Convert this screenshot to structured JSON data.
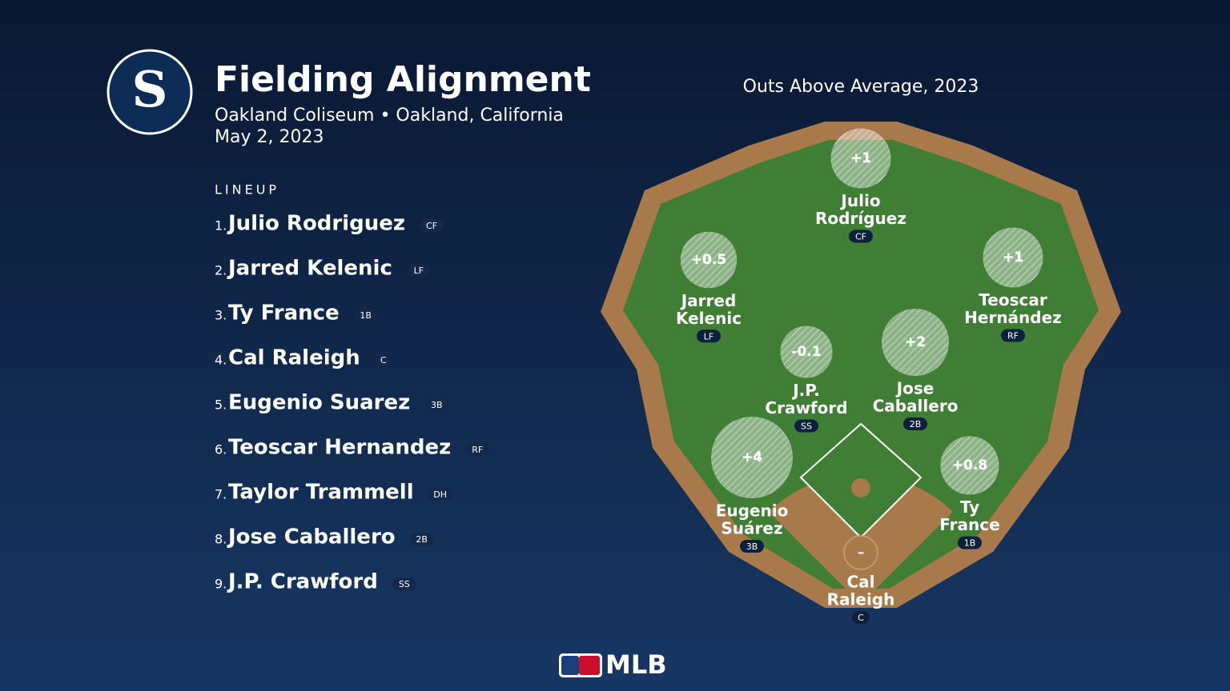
{
  "header": {
    "title": "Fielding Alignment",
    "venue": "Oakland Coliseum • Oakland, California",
    "date": "May 2, 2023",
    "logo_letter": "S"
  },
  "lineup": {
    "heading": "LINEUP",
    "rows": [
      {
        "number": "1.",
        "name": "Julio Rodriguez",
        "position": "CF"
      },
      {
        "number": "2.",
        "name": "Jarred Kelenic",
        "position": "LF"
      },
      {
        "number": "3.",
        "name": "Ty France",
        "position": "1B"
      },
      {
        "number": "4.",
        "name": "Cal Raleigh",
        "position": "C"
      },
      {
        "number": "5.",
        "name": "Eugenio Suarez",
        "position": "3B"
      },
      {
        "number": "6.",
        "name": "Teoscar Hernandez",
        "position": "RF"
      },
      {
        "number": "7.",
        "name": "Taylor Trammell",
        "position": "DH"
      },
      {
        "number": "8.",
        "name": "Jose Caballero",
        "position": "2B"
      },
      {
        "number": "9.",
        "name": "J.P. Crawford",
        "position": "SS"
      }
    ]
  },
  "field": {
    "title": "Outs Above Average, 2023",
    "players": [
      {
        "name_lines": [
          "Julio",
          "Rodríguez"
        ],
        "position": "CF",
        "oaa": {
          "value": 1,
          "label": "+1"
        }
      },
      {
        "name_lines": [
          "Jarred",
          "Kelenic"
        ],
        "position": "LF",
        "oaa": {
          "value": 0.5,
          "label": "+0.5"
        }
      },
      {
        "name_lines": [
          "Teoscar",
          "Hernández"
        ],
        "position": "RF",
        "oaa": {
          "value": 1,
          "label": "+1"
        }
      },
      {
        "name_lines": [
          "J.P.",
          "Crawford"
        ],
        "position": "SS",
        "oaa": -0.1
      },
      {
        "name_lines": [
          "Jose",
          "Caballero"
        ],
        "position": "2B",
        "oaa": {
          "value": 2,
          "label": "+2"
        }
      },
      {
        "name_lines": [
          "Eugenio",
          "Suárez"
        ],
        "position": "3B",
        "oaa": {
          "value": 4,
          "label": "+4"
        }
      },
      {
        "name_lines": [
          "Ty",
          "France"
        ],
        "position": "1B",
        "oaa": {
          "value": 0.8,
          "label": "+0.8"
        }
      },
      {
        "name_lines": [
          "Cal",
          "Raleigh"
        ],
        "position": "C",
        "oaa": {
          "value": null,
          "label": "–"
        }
      }
    ]
  },
  "footer": {
    "brand": "MLB"
  }
}
